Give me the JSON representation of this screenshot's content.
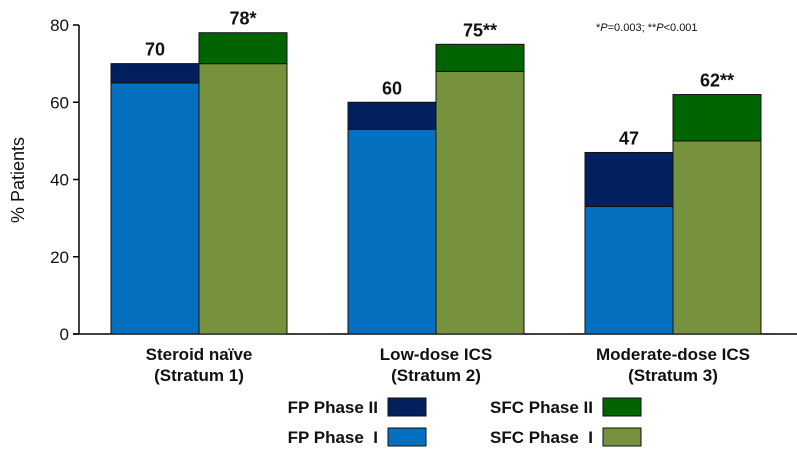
{
  "chart_data": {
    "type": "bar",
    "stacked": true,
    "title": "",
    "ylabel": "% Patients",
    "xlabel": "",
    "ylim": [
      0,
      80
    ],
    "yticks": [
      0,
      20,
      40,
      60,
      80
    ],
    "grid": false,
    "categories": [
      [
        "Steroid naïve",
        "(Stratum 1)"
      ],
      [
        "Low-dose ICS",
        "(Stratum 2)"
      ],
      [
        "Moderate-dose ICS",
        "(Stratum 3)"
      ]
    ],
    "groups": [
      {
        "name": "FP",
        "series": [
          {
            "name": "FP Phase  I",
            "color": "#0570c0",
            "values": [
              65,
              53,
              33
            ]
          },
          {
            "name": "FP Phase II",
            "color": "#02205e",
            "values": [
              5,
              7,
              14
            ]
          }
        ],
        "totals_labels": [
          "70",
          "60",
          "47"
        ]
      },
      {
        "name": "SFC",
        "series": [
          {
            "name": "SFC Phase  I",
            "color": "#76923c",
            "values": [
              70,
              68,
              50
            ]
          },
          {
            "name": "SFC Phase II",
            "color": "#006400",
            "values": [
              8,
              7,
              12
            ]
          }
        ],
        "totals_labels": [
          "78*",
          "75**",
          "62**"
        ]
      }
    ],
    "legend": {
      "placement": "bottom",
      "entries": [
        {
          "label": "FP Phase II",
          "color": "#02205e"
        },
        {
          "label": "SFC Phase II",
          "color": "#006400"
        },
        {
          "label": "FP Phase  I",
          "color": "#0570c0"
        },
        {
          "label": "SFC Phase  I",
          "color": "#76923c"
        }
      ]
    },
    "annotation": "*P=0.003; **P<0.001"
  }
}
